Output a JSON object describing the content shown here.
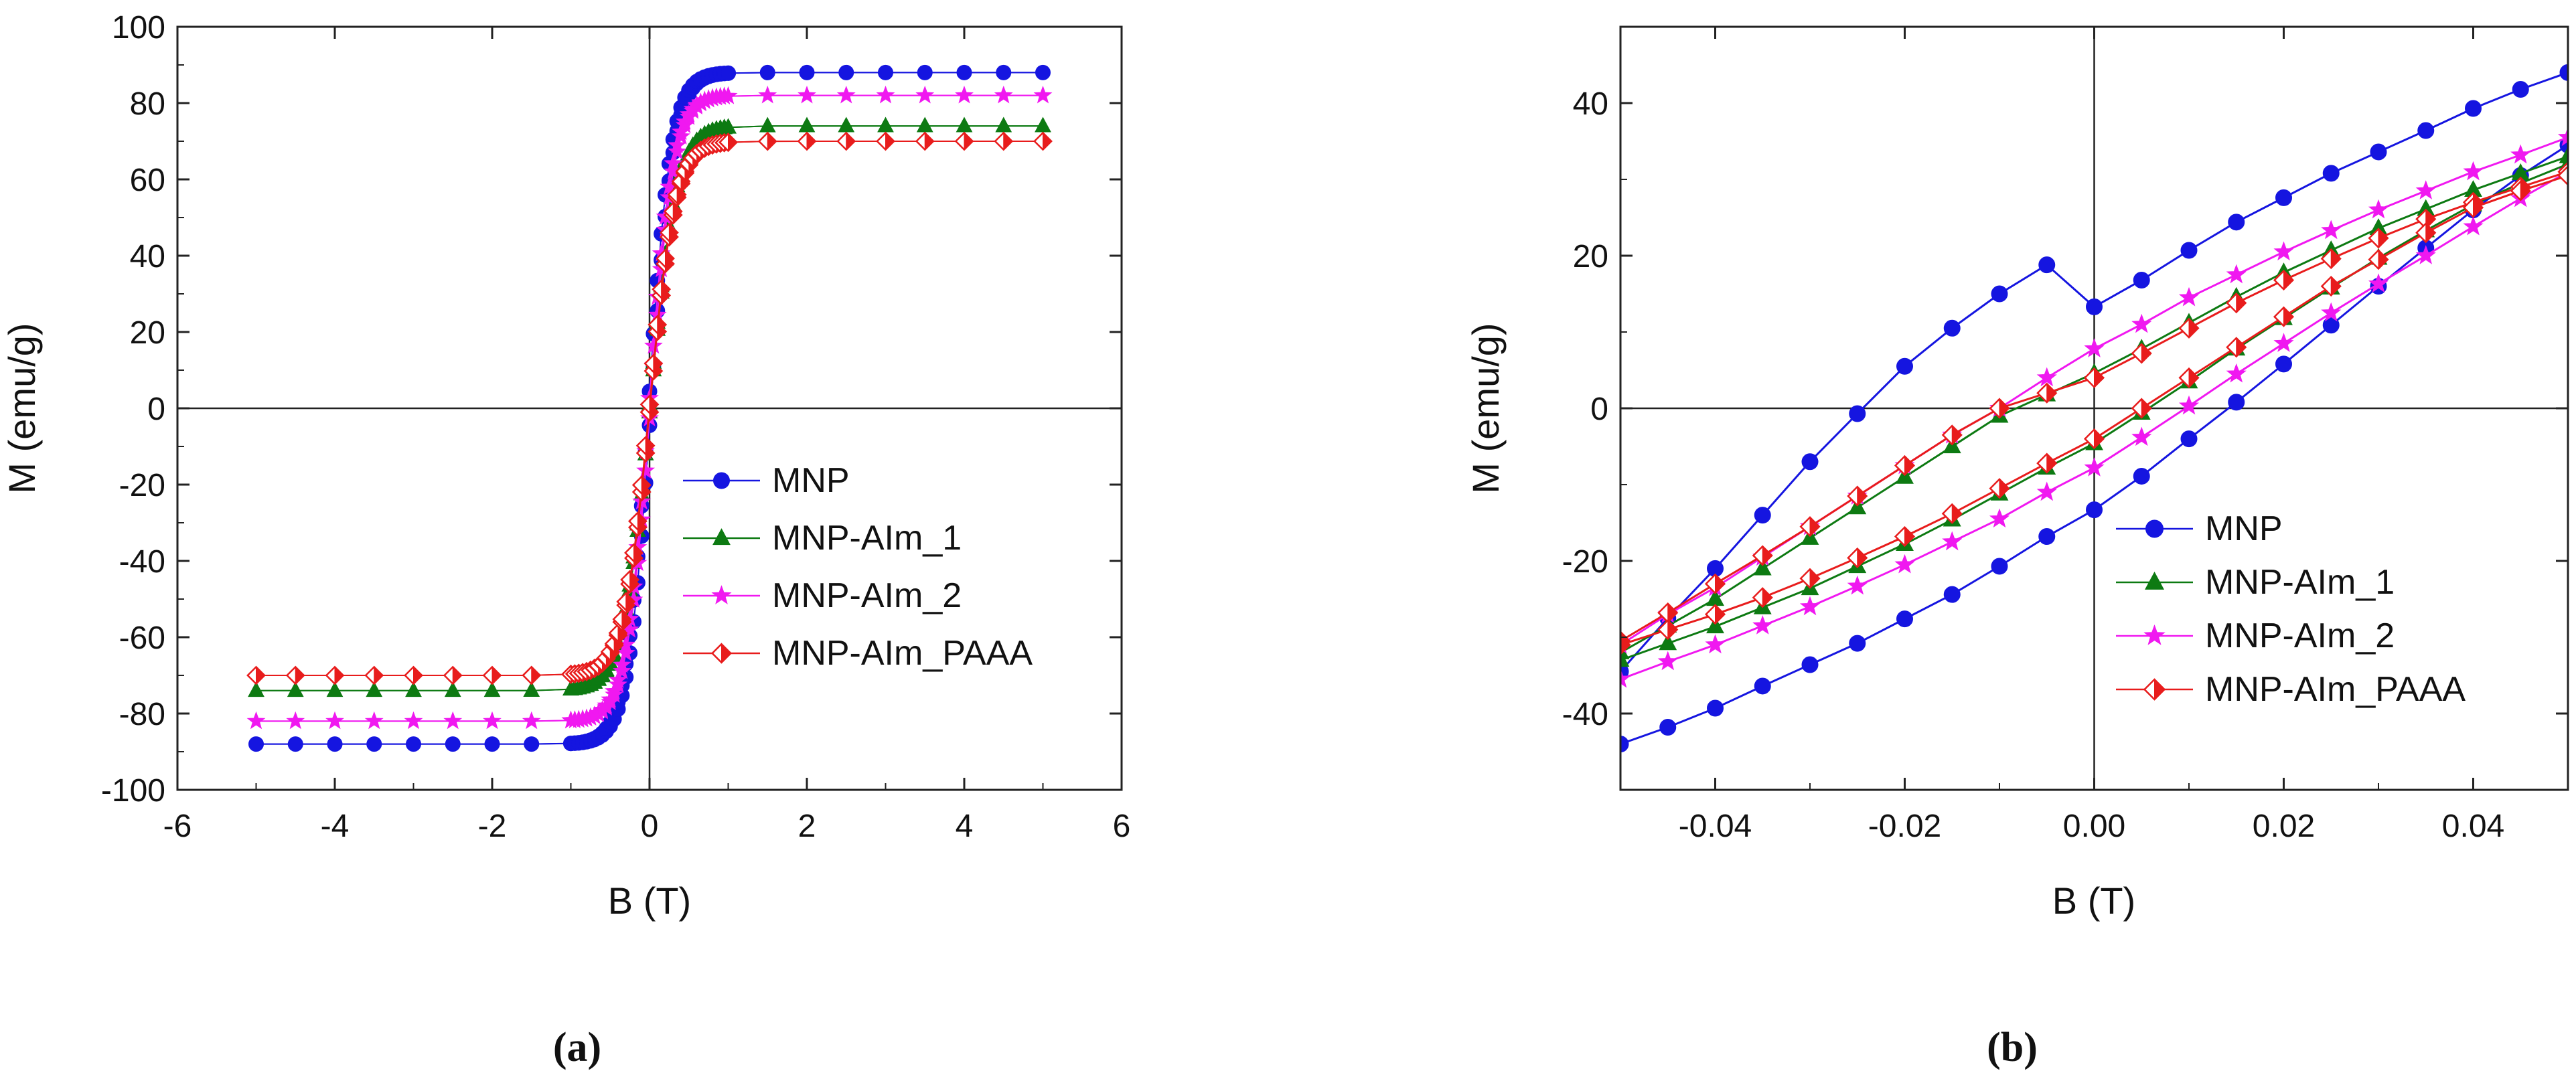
{
  "chart_data": [
    {
      "id": "a",
      "type": "line",
      "panel_label": "(a)",
      "xlabel": "B (T)",
      "ylabel": "M (emu/g)",
      "xlim": [
        -6,
        6
      ],
      "ylim": [
        -100,
        100
      ],
      "xticks": [
        -6,
        -4,
        -2,
        0,
        2,
        4,
        6
      ],
      "yticks": [
        -100,
        -80,
        -60,
        -40,
        -20,
        0,
        20,
        40,
        60,
        80,
        100
      ],
      "xtick_labels": [
        "-6",
        "-4",
        "-2",
        "0",
        "2",
        "4",
        "6"
      ],
      "ytick_labels": [
        "-100",
        "-80",
        "-60",
        "-40",
        "-20",
        "0",
        "20",
        "40",
        "60",
        "80",
        "100"
      ],
      "legend_position": "center-right",
      "series": [
        {
          "name": "MNP",
          "color": "#1515e0",
          "marker": "circle",
          "Ms": 88,
          "Mr": 13.3,
          "Hc": 0.0145,
          "k": 3.5
        },
        {
          "name": "MNP-AIm_1",
          "color": "#0d7a12",
          "marker": "triangle",
          "Ms": 74,
          "Mr": 4.6,
          "Hc": 0.0046,
          "k": 3.0
        },
        {
          "name": "MNP-AIm_2",
          "color": "#f018f0",
          "marker": "star",
          "Ms": 82,
          "Mr": 7.8,
          "Hc": 0.0095,
          "k": 3.4
        },
        {
          "name": "MNP-AIm_PAAA",
          "color": "#e81c1c",
          "marker": "half-diamond",
          "Ms": 70,
          "Mr": 4.0,
          "Hc": 0.0046,
          "k": 3.1
        }
      ]
    },
    {
      "id": "b",
      "type": "line",
      "panel_label": "(b)",
      "xlabel": "B (T)",
      "ylabel": "M (emu/g)",
      "xlim": [
        -0.05,
        0.05
      ],
      "ylim": [
        -50,
        50
      ],
      "xticks": [
        -0.04,
        -0.02,
        0.0,
        0.02,
        0.04
      ],
      "yticks": [
        -40,
        -20,
        0,
        20,
        40
      ],
      "xtick_labels": [
        "-0.04",
        "-0.02",
        "0.00",
        "0.02",
        "0.04"
      ],
      "ytick_labels": [
        "-40",
        "-20",
        "0",
        "20",
        "40"
      ],
      "legend_position": "lower-right",
      "series": [
        {
          "name": "MNP",
          "color": "#1515e0",
          "marker": "circle",
          "x": [
            -0.05,
            -0.045,
            -0.04,
            -0.035,
            -0.03,
            -0.025,
            -0.02,
            -0.015,
            -0.01,
            -0.005,
            0.0,
            0.005,
            0.01,
            0.015,
            0.02,
            0.025,
            0.03,
            0.035,
            0.04,
            0.045,
            0.05
          ],
          "upper": [
            -34.5,
            -27.5,
            -21.0,
            -14.0,
            -7.0,
            -0.7,
            5.5,
            10.5,
            15.0,
            18.8,
            13.3,
            16.8,
            20.7,
            24.4,
            27.6,
            30.8,
            33.6,
            36.4,
            39.3,
            41.8,
            44.0
          ],
          "lower": [
            -44.0,
            -41.8,
            -39.3,
            -36.4,
            -33.6,
            -30.8,
            -27.6,
            -24.4,
            -20.7,
            -16.8,
            -13.3,
            -8.9,
            -4.0,
            0.8,
            5.8,
            10.9,
            16.0,
            21.0,
            26.0,
            30.5,
            34.5
          ]
        },
        {
          "name": "MNP-AIm_1",
          "color": "#0d7a12",
          "marker": "triangle",
          "x": [
            -0.05,
            -0.045,
            -0.04,
            -0.035,
            -0.03,
            -0.025,
            -0.02,
            -0.015,
            -0.01,
            -0.005,
            0.0,
            0.005,
            0.01,
            0.015,
            0.02,
            0.025,
            0.03,
            0.035,
            0.04,
            0.045,
            0.05
          ],
          "upper": [
            -32.0,
            -28.5,
            -25.0,
            -21.0,
            -17.0,
            -13.0,
            -9.0,
            -5.0,
            -1.0,
            1.8,
            4.6,
            7.8,
            11.2,
            14.6,
            17.8,
            20.7,
            23.6,
            26.1,
            28.6,
            30.8,
            33.0
          ],
          "lower": [
            -33.0,
            -30.8,
            -28.6,
            -26.1,
            -23.6,
            -20.7,
            -17.8,
            -14.6,
            -11.2,
            -7.8,
            -4.6,
            -0.6,
            3.5,
            7.8,
            11.8,
            15.8,
            19.7,
            23.3,
            26.7,
            29.5,
            32.0
          ]
        },
        {
          "name": "MNP-AIm_2",
          "color": "#f018f0",
          "marker": "star",
          "x": [
            -0.05,
            -0.045,
            -0.04,
            -0.035,
            -0.03,
            -0.025,
            -0.02,
            -0.015,
            -0.01,
            -0.005,
            0.0,
            0.005,
            0.01,
            0.015,
            0.02,
            0.025,
            0.03,
            0.035,
            0.04,
            0.045,
            0.05
          ],
          "upper": [
            -31.0,
            -27.0,
            -23.5,
            -19.5,
            -15.5,
            -11.5,
            -7.5,
            -3.5,
            0.0,
            4.0,
            7.8,
            11.0,
            14.5,
            17.5,
            20.5,
            23.3,
            26.0,
            28.5,
            31.0,
            33.2,
            35.5
          ],
          "lower": [
            -35.5,
            -33.2,
            -31.0,
            -28.5,
            -26.0,
            -23.3,
            -20.5,
            -17.5,
            -14.5,
            -11.0,
            -7.8,
            -3.8,
            0.3,
            4.5,
            8.5,
            12.5,
            16.3,
            20.0,
            23.8,
            27.5,
            31.0
          ]
        },
        {
          "name": "MNP-AIm_PAAA",
          "color": "#e81c1c",
          "marker": "half-diamond",
          "x": [
            -0.05,
            -0.045,
            -0.04,
            -0.035,
            -0.03,
            -0.025,
            -0.02,
            -0.015,
            -0.01,
            -0.005,
            0.0,
            0.005,
            0.01,
            0.015,
            0.02,
            0.025,
            0.03,
            0.035,
            0.04,
            0.045,
            0.05
          ],
          "upper": [
            -30.5,
            -26.8,
            -23.0,
            -19.3,
            -15.5,
            -11.5,
            -7.5,
            -3.5,
            0.0,
            2.0,
            4.0,
            7.2,
            10.5,
            13.8,
            16.8,
            19.6,
            22.3,
            24.8,
            27.0,
            29.0,
            31.0
          ],
          "lower": [
            -31.0,
            -29.0,
            -27.0,
            -24.8,
            -22.3,
            -19.6,
            -16.8,
            -13.8,
            -10.5,
            -7.2,
            -4.0,
            0.0,
            4.0,
            8.0,
            12.0,
            16.0,
            19.5,
            23.0,
            26.3,
            28.5,
            30.5
          ]
        }
      ]
    }
  ]
}
